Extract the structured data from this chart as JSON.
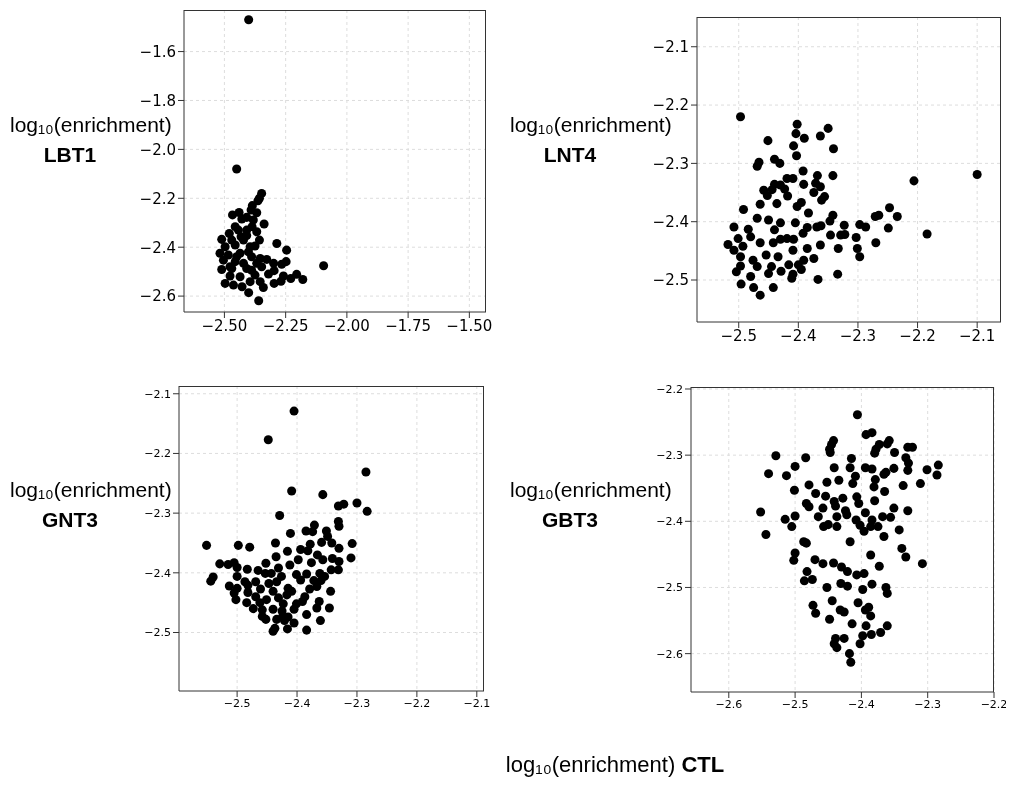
{
  "chart_data": [
    {
      "type": "scatter",
      "ylabel": "log₁₀(enrichment) LBT1",
      "color": "#000000",
      "marker": "circle",
      "grid": true,
      "xlim": [
        -2.665,
        -1.432
      ],
      "ylim": [
        -2.665,
        -1.43
      ],
      "xticks": [
        {
          "value": -2.5,
          "label": "−2.50"
        },
        {
          "value": -2.25,
          "label": "−2.25"
        },
        {
          "value": -2.0,
          "label": "−2.00"
        },
        {
          "value": -1.75,
          "label": "−1.75"
        },
        {
          "value": -1.5,
          "label": "−1.50"
        }
      ],
      "yticks": [
        {
          "value": -2.6,
          "label": "−2.6"
        },
        {
          "value": -2.4,
          "label": "−2.4"
        },
        {
          "value": -2.2,
          "label": "−2.2"
        },
        {
          "value": -2.0,
          "label": "−2.0"
        },
        {
          "value": -1.8,
          "label": "−1.8"
        },
        {
          "value": -1.6,
          "label": "−1.6"
        }
      ],
      "x": [
        -2.401,
        -2.45,
        -2.348,
        -2.357,
        -2.363,
        -2.386,
        -2.391,
        -2.368,
        -2.44,
        -2.467,
        -2.409,
        -2.429,
        -2.338,
        -2.387,
        -2.456,
        -2.368,
        -2.48,
        -2.409,
        -2.432,
        -2.357,
        -2.286,
        -2.511,
        -2.497,
        -2.456,
        -2.395,
        -2.375,
        -2.246,
        -2.518,
        -2.484,
        -2.436,
        -2.402,
        -2.354,
        -2.327,
        -2.248,
        -2.504,
        -2.456,
        -2.422,
        -2.368,
        -2.095,
        -2.266,
        -2.511,
        -2.47,
        -2.409,
        -2.348,
        -2.297,
        -2.259,
        -2.205,
        -2.18,
        -2.229,
        -2.32,
        -2.477,
        -2.436,
        -2.375,
        -2.269,
        -2.297,
        -2.497,
        -2.463,
        -2.395,
        -2.354,
        -2.428,
        -2.341,
        -2.401,
        -2.36,
        -2.45,
        -2.389,
        -2.422,
        -2.47,
        -2.409,
        -2.443,
        -2.382,
        -2.477,
        -2.389,
        -2.299
      ],
      "values": [
        -1.47,
        -2.08,
        -2.18,
        -2.2,
        -2.21,
        -2.23,
        -2.248,
        -2.259,
        -2.258,
        -2.268,
        -2.278,
        -2.285,
        -2.305,
        -2.316,
        -2.316,
        -2.337,
        -2.344,
        -2.352,
        -2.357,
        -2.371,
        -2.385,
        -2.368,
        -2.398,
        -2.391,
        -2.398,
        -2.395,
        -2.412,
        -2.425,
        -2.432,
        -2.425,
        -2.419,
        -2.446,
        -2.45,
        -2.459,
        -2.453,
        -2.459,
        -2.466,
        -2.466,
        -2.476,
        -2.47,
        -2.491,
        -2.487,
        -2.487,
        -2.48,
        -2.496,
        -2.518,
        -2.511,
        -2.532,
        -2.528,
        -2.51,
        -2.518,
        -2.521,
        -2.514,
        -2.539,
        -2.548,
        -2.548,
        -2.555,
        -2.541,
        -2.541,
        -2.562,
        -2.565,
        -2.586,
        -2.619,
        -2.439,
        -2.439,
        -2.371,
        -2.371,
        -2.33,
        -2.33,
        -2.289,
        -2.48,
        -2.494,
        -2.466
      ]
    },
    {
      "type": "scatter",
      "ylabel": "log₁₀(enrichment) LNT4",
      "color": "#000000",
      "marker": "circle",
      "grid": true,
      "xlim": [
        -2.57,
        -2.06
      ],
      "ylim": [
        -2.572,
        -2.049
      ],
      "xticks": [
        {
          "value": -2.5,
          "label": "−2.5"
        },
        {
          "value": -2.4,
          "label": "−2.4"
        },
        {
          "value": -2.3,
          "label": "−2.3"
        },
        {
          "value": -2.2,
          "label": "−2.2"
        },
        {
          "value": -2.1,
          "label": "−2.1"
        }
      ],
      "yticks": [
        {
          "value": -2.5,
          "label": "−2.5"
        },
        {
          "value": -2.4,
          "label": "−2.4"
        },
        {
          "value": -2.3,
          "label": "−2.3"
        },
        {
          "value": -2.2,
          "label": "−2.2"
        },
        {
          "value": -2.1,
          "label": "−2.1"
        }
      ],
      "x": [
        -2.497,
        -2.402,
        -2.35,
        -2.404,
        -2.39,
        -2.363,
        -2.451,
        -2.408,
        -2.341,
        -2.403,
        -2.44,
        -2.431,
        -2.466,
        -2.469,
        -2.392,
        -2.368,
        -2.342,
        -2.1,
        -2.206,
        -2.419,
        -2.409,
        -2.391,
        -2.44,
        -2.43,
        -2.371,
        -2.363,
        -2.458,
        -2.444,
        -2.423,
        -2.356,
        -2.374,
        -2.452,
        -2.418,
        -2.395,
        -2.361,
        -2.402,
        -2.436,
        -2.464,
        -2.492,
        -2.383,
        -2.342,
        -2.265,
        -2.247,
        -2.234,
        -2.184,
        -2.249,
        -2.271,
        -2.323,
        -2.297,
        -2.287,
        -2.347,
        -2.369,
        -2.508,
        -2.469,
        -2.45,
        -2.43,
        -2.405,
        -2.385,
        -2.362,
        -2.44,
        -2.484,
        -2.419,
        -2.408,
        -2.43,
        -2.392,
        -2.346,
        -2.329,
        -2.303,
        -2.322,
        -2.518,
        -2.501,
        -2.493,
        -2.48,
        -2.464,
        -2.442,
        -2.301,
        -2.27,
        -2.333,
        -2.385,
        -2.363,
        -2.508,
        -2.497,
        -2.476,
        -2.454,
        -2.434,
        -2.409,
        -2.374,
        -2.297,
        -2.391,
        -2.497,
        -2.469,
        -2.445,
        -2.416,
        -2.4,
        -2.504,
        -2.48,
        -2.45,
        -2.429,
        -2.395,
        -2.409,
        -2.411,
        -2.367,
        -2.334,
        -2.496,
        -2.475,
        -2.442,
        -2.464
      ],
      "values": [
        -2.22,
        -2.233,
        -2.24,
        -2.249,
        -2.257,
        -2.253,
        -2.261,
        -2.27,
        -2.275,
        -2.287,
        -2.293,
        -2.3,
        -2.298,
        -2.305,
        -2.313,
        -2.321,
        -2.321,
        -2.319,
        -2.33,
        -2.326,
        -2.326,
        -2.336,
        -2.336,
        -2.337,
        -2.334,
        -2.34,
        -2.346,
        -2.345,
        -2.344,
        -2.357,
        -2.35,
        -2.355,
        -2.356,
        -2.367,
        -2.363,
        -2.374,
        -2.369,
        -2.37,
        -2.379,
        -2.385,
        -2.389,
        -2.389,
        -2.376,
        -2.391,
        -2.421,
        -2.411,
        -2.391,
        -2.406,
        -2.405,
        -2.409,
        -2.399,
        -2.409,
        -2.409,
        -2.394,
        -2.397,
        -2.402,
        -2.402,
        -2.41,
        -2.407,
        -2.414,
        -2.413,
        -2.429,
        -2.43,
        -2.43,
        -2.42,
        -2.423,
        -2.423,
        -2.427,
        -2.422,
        -2.439,
        -2.429,
        -2.442,
        -2.426,
        -2.436,
        -2.436,
        -2.446,
        -2.436,
        -2.446,
        -2.446,
        -2.44,
        -2.449,
        -2.46,
        -2.466,
        -2.457,
        -2.46,
        -2.449,
        -2.463,
        -2.46,
        -2.466,
        -2.476,
        -2.477,
        -2.477,
        -2.474,
        -2.474,
        -2.486,
        -2.494,
        -2.489,
        -2.485,
        -2.482,
        -2.49,
        -2.497,
        -2.499,
        -2.49,
        -2.507,
        -2.513,
        -2.513,
        -2.526
      ]
    },
    {
      "type": "scatter",
      "ylabel": "log₁₀(enrichment) GNT3",
      "color": "#000000",
      "marker": "circle",
      "grid": true,
      "xlim": [
        -2.597,
        -2.088
      ],
      "ylim": [
        -2.598,
        -2.087
      ],
      "xticks": [
        {
          "value": -2.5,
          "label": "−2.5"
        },
        {
          "value": -2.4,
          "label": "−2.4"
        },
        {
          "value": -2.3,
          "label": "−2.3"
        },
        {
          "value": -2.2,
          "label": "−2.2"
        },
        {
          "value": -2.1,
          "label": "−2.1"
        }
      ],
      "yticks": [
        {
          "value": -2.5,
          "label": "−2.5"
        },
        {
          "value": -2.4,
          "label": "−2.4"
        },
        {
          "value": -2.3,
          "label": "−2.3"
        },
        {
          "value": -2.2,
          "label": "−2.2"
        },
        {
          "value": -2.1,
          "label": "−2.1"
        }
      ],
      "x": [
        -2.405,
        -2.448,
        -2.285,
        -2.409,
        -2.357,
        -2.331,
        -2.322,
        -2.3,
        -2.283,
        -2.429,
        -2.331,
        -2.33,
        -2.371,
        -2.385,
        -2.374,
        -2.411,
        -2.351,
        -2.359,
        -2.349,
        -2.342,
        -2.551,
        -2.498,
        -2.479,
        -2.436,
        -2.378,
        -2.308,
        -2.33,
        -2.31,
        -2.416,
        -2.394,
        -2.382,
        -2.435,
        -2.398,
        -2.366,
        -2.357,
        -2.341,
        -2.33,
        -2.529,
        -2.515,
        -2.505,
        -2.465,
        -2.452,
        -2.431,
        -2.412,
        -2.376,
        -2.343,
        -2.331,
        -2.5,
        -2.483,
        -2.453,
        -2.443,
        -2.426,
        -2.401,
        -2.384,
        -2.362,
        -2.354,
        -2.54,
        -2.544,
        -2.5,
        -2.487,
        -2.469,
        -2.447,
        -2.434,
        -2.415,
        -2.394,
        -2.372,
        -2.36,
        -2.513,
        -2.5,
        -2.482,
        -2.461,
        -2.44,
        -2.409,
        -2.379,
        -2.344,
        -2.367,
        -2.505,
        -2.482,
        -2.469,
        -2.451,
        -2.431,
        -2.417,
        -2.387,
        -2.391,
        -2.502,
        -2.484,
        -2.462,
        -2.423,
        -2.401,
        -2.363,
        -2.473,
        -2.458,
        -2.44,
        -2.425,
        -2.405,
        -2.346,
        -2.367,
        -2.458,
        -2.424,
        -2.415,
        -2.384,
        -2.452,
        -2.434,
        -2.421,
        -2.405,
        -2.361,
        -2.437,
        -2.44,
        -2.416,
        -2.384
      ],
      "values": [
        -2.129,
        -2.177,
        -2.231,
        -2.263,
        -2.269,
        -2.288,
        -2.285,
        -2.283,
        -2.297,
        -2.304,
        -2.314,
        -2.322,
        -2.32,
        -2.33,
        -2.331,
        -2.334,
        -2.33,
        -2.349,
        -2.339,
        -2.35,
        -2.354,
        -2.354,
        -2.357,
        -2.35,
        -2.352,
        -2.351,
        -2.359,
        -2.375,
        -2.364,
        -2.361,
        -2.363,
        -2.373,
        -2.378,
        -2.37,
        -2.378,
        -2.376,
        -2.381,
        -2.385,
        -2.386,
        -2.383,
        -2.396,
        -2.384,
        -2.392,
        -2.387,
        -2.383,
        -2.395,
        -2.395,
        -2.391,
        -2.394,
        -2.401,
        -2.401,
        -2.406,
        -2.403,
        -2.402,
        -2.401,
        -2.406,
        -2.407,
        -2.414,
        -2.406,
        -2.415,
        -2.415,
        -2.418,
        -2.415,
        -2.426,
        -2.412,
        -2.413,
        -2.413,
        -2.422,
        -2.426,
        -2.421,
        -2.427,
        -2.431,
        -2.431,
        -2.427,
        -2.431,
        -2.423,
        -2.434,
        -2.433,
        -2.44,
        -2.445,
        -2.442,
        -2.437,
        -2.44,
        -2.448,
        -2.445,
        -2.45,
        -2.45,
        -2.452,
        -2.452,
        -2.448,
        -2.46,
        -2.462,
        -2.461,
        -2.464,
        -2.461,
        -2.459,
        -2.459,
        -2.473,
        -2.473,
        -2.474,
        -2.47,
        -2.478,
        -2.478,
        -2.48,
        -2.484,
        -2.48,
        -2.493,
        -2.498,
        -2.494,
        -2.496
      ]
    },
    {
      "type": "scatter",
      "ylabel": "log₁₀(enrichment) GBT3",
      "xlabel": "log₁₀(enrichment) CTL",
      "color": "#000000",
      "marker": "circle",
      "grid": true,
      "xlim": [
        -2.657,
        -2.2
      ],
      "ylim": [
        -2.658,
        -2.197
      ],
      "xticks": [
        {
          "value": -2.6,
          "label": "−2.6"
        },
        {
          "value": -2.5,
          "label": "−2.5"
        },
        {
          "value": -2.4,
          "label": "−2.4"
        },
        {
          "value": -2.3,
          "label": "−2.3"
        },
        {
          "value": -2.2,
          "label": "−2.2"
        }
      ],
      "yticks": [
        {
          "value": -2.6,
          "label": "−2.6"
        },
        {
          "value": -2.5,
          "label": "−2.5"
        },
        {
          "value": -2.4,
          "label": "−2.4"
        },
        {
          "value": -2.3,
          "label": "−2.3"
        },
        {
          "value": -2.2,
          "label": "−2.2"
        }
      ],
      "x": [
        -2.406,
        -2.393,
        -2.384,
        -2.442,
        -2.445,
        -2.373,
        -2.358,
        -2.361,
        -2.448,
        -2.447,
        -2.378,
        -2.38,
        -2.35,
        -2.33,
        -2.323,
        -2.333,
        -2.529,
        -2.484,
        -2.415,
        -2.54,
        -2.513,
        -2.5,
        -2.301,
        -2.284,
        -2.286,
        -2.311,
        -2.329,
        -2.441,
        -2.417,
        -2.394,
        -2.384,
        -2.363,
        -2.351,
        -2.33,
        -2.501,
        -2.479,
        -2.452,
        -2.434,
        -2.409,
        -2.413,
        -2.379,
        -2.366,
        -2.337,
        -2.552,
        -2.544,
        -2.515,
        -2.505,
        -2.5,
        -2.483,
        -2.469,
        -2.454,
        -2.441,
        -2.428,
        -2.407,
        -2.381,
        -2.365,
        -2.351,
        -2.33,
        -2.479,
        -2.458,
        -2.439,
        -2.424,
        -2.404,
        -2.38,
        -2.465,
        -2.45,
        -2.437,
        -2.422,
        -2.408,
        -2.394,
        -2.384,
        -2.368,
        -2.356,
        -2.343,
        -2.339,
        -2.333,
        -2.308,
        -2.366,
        -2.375,
        -2.5,
        -2.483,
        -2.457,
        -2.437,
        -2.417,
        -2.402,
        -2.396,
        -2.386,
        -2.502,
        -2.487,
        -2.47,
        -2.458,
        -2.43,
        -2.421,
        -2.407,
        -2.396,
        -2.386,
        -2.373,
        -2.482,
        -2.486,
        -2.474,
        -2.452,
        -2.442,
        -2.431,
        -2.421,
        -2.398,
        -2.384,
        -2.363,
        -2.361,
        -2.473,
        -2.469,
        -2.444,
        -2.432,
        -2.426,
        -2.405,
        -2.394,
        -2.389,
        -2.386,
        -2.448,
        -2.414,
        -2.393,
        -2.361,
        -2.371,
        -2.385,
        -2.398,
        -2.439,
        -2.426,
        -2.441,
        -2.437,
        -2.402,
        -2.418,
        -2.416
      ],
      "values": [
        -2.239,
        -2.269,
        -2.266,
        -2.278,
        -2.284,
        -2.284,
        -2.278,
        -2.283,
        -2.291,
        -2.296,
        -2.291,
        -2.297,
        -2.296,
        -2.288,
        -2.288,
        -2.304,
        -2.301,
        -2.304,
        -2.305,
        -2.328,
        -2.331,
        -2.317,
        -2.322,
        -2.315,
        -2.33,
        -2.343,
        -2.312,
        -2.319,
        -2.319,
        -2.319,
        -2.321,
        -2.326,
        -2.32,
        -2.323,
        -2.353,
        -2.345,
        -2.341,
        -2.338,
        -2.332,
        -2.343,
        -2.337,
        -2.329,
        -2.346,
        -2.386,
        -2.42,
        -2.397,
        -2.408,
        -2.392,
        -2.373,
        -2.358,
        -2.362,
        -2.37,
        -2.365,
        -2.363,
        -2.348,
        -2.355,
        -2.38,
        -2.384,
        -2.378,
        -2.38,
        -2.377,
        -2.384,
        -2.373,
        -2.369,
        -2.393,
        -2.405,
        -2.393,
        -2.39,
        -2.398,
        -2.387,
        -2.398,
        -2.393,
        -2.394,
        -2.413,
        -2.441,
        -2.454,
        -2.464,
        -2.423,
        -2.408,
        -2.448,
        -2.433,
        -2.408,
        -2.408,
        -2.431,
        -2.406,
        -2.415,
        -2.408,
        -2.459,
        -2.431,
        -2.458,
        -2.464,
        -2.469,
        -2.476,
        -2.481,
        -2.479,
        -2.451,
        -2.468,
        -2.476,
        -2.49,
        -2.488,
        -2.5,
        -2.463,
        -2.494,
        -2.498,
        -2.503,
        -2.495,
        -2.5,
        -2.509,
        -2.527,
        -2.539,
        -2.52,
        -2.534,
        -2.537,
        -2.523,
        -2.534,
        -2.53,
        -2.543,
        -2.548,
        -2.555,
        -2.558,
        -2.558,
        -2.568,
        -2.571,
        -2.573,
        -2.577,
        -2.577,
        -2.585,
        -2.591,
        -2.585,
        -2.6,
        -2.613
      ]
    }
  ]
}
